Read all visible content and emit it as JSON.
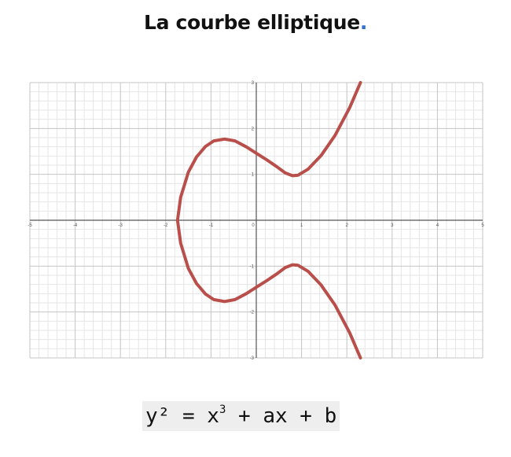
{
  "title": {
    "text": "La courbe elliptique",
    "dot": "."
  },
  "formula": {
    "lhs": "y²",
    "eq": " = x",
    "exp": "3",
    "rhs": " + ax + b"
  },
  "chart_data": {
    "type": "line",
    "title": "",
    "xlabel": "",
    "ylabel": "",
    "xlim": [
      -5,
      5
    ],
    "ylim": [
      -3,
      3
    ],
    "grid": true,
    "x_ticks": [
      -5,
      -4,
      -3,
      -2,
      -1,
      0,
      1,
      2,
      3,
      4,
      5
    ],
    "y_ticks": [
      -3,
      -2,
      -1,
      1,
      2,
      3
    ],
    "series": [
      {
        "name": "",
        "color": "#b94f4a",
        "x": [
          2.3,
          2.06,
          1.74,
          1.43,
          1.14,
          0.92,
          0.8,
          0.64,
          0.45,
          0.21,
          0.0,
          -0.22,
          -0.47,
          -0.7,
          -0.94,
          -1.12,
          -1.32,
          -1.5,
          -1.67,
          -1.74,
          -1.67,
          -1.5,
          -1.32,
          -1.12,
          -0.94,
          -0.7,
          -0.47,
          -0.22,
          0.0,
          0.21,
          0.45,
          0.64,
          0.8,
          0.92,
          1.14,
          1.43,
          1.74,
          2.06,
          2.3
        ],
        "y": [
          3.0,
          2.45,
          1.85,
          1.41,
          1.11,
          0.98,
          0.97,
          1.03,
          1.17,
          1.33,
          1.46,
          1.6,
          1.73,
          1.77,
          1.73,
          1.61,
          1.38,
          1.05,
          0.5,
          0.0,
          -0.5,
          -1.05,
          -1.38,
          -1.61,
          -1.73,
          -1.77,
          -1.73,
          -1.6,
          -1.46,
          -1.33,
          -1.17,
          -1.03,
          -0.97,
          -0.98,
          -1.11,
          -1.41,
          -1.85,
          -2.45,
          -3.0
        ]
      }
    ]
  }
}
